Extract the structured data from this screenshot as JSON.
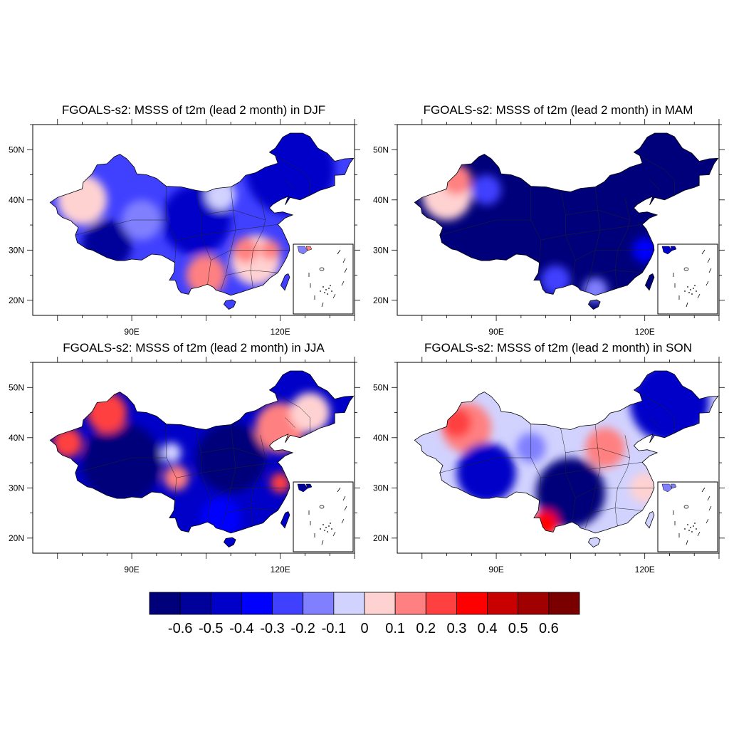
{
  "palette": [
    "#00007a",
    "#00009a",
    "#0000c8",
    "#0000ff",
    "#4040ff",
    "#8080ff",
    "#d2d2ff",
    "#ffd2d2",
    "#ff8080",
    "#ff4040",
    "#ff0000",
    "#c80000",
    "#a00000",
    "#7a0000"
  ],
  "colorbar": {
    "labels": [
      "-0.6",
      "-0.5",
      "-0.4",
      "-0.3",
      "-0.2",
      "-0.1",
      "0",
      "0.1",
      "0.2",
      "0.3",
      "0.4",
      "0.5",
      "0.6"
    ]
  },
  "axes": {
    "lon_labels": [
      "90E",
      "120E"
    ],
    "lat_labels": [
      "50N",
      "40N",
      "30N",
      "20N"
    ]
  },
  "panels": [
    {
      "id": "djf",
      "title": "FGOALS-s2: MSSS of t2m (lead 2 month) in DJF",
      "base_color": "#4040ff",
      "blobs": [
        {
          "lon": 122,
          "lat": 46,
          "r": 9,
          "c": "#0000c8"
        },
        {
          "lon": 85,
          "lat": 31,
          "r": 5,
          "c": "#00009a"
        },
        {
          "lon": 103,
          "lat": 36,
          "r": 7,
          "c": "#0000c8"
        },
        {
          "lon": 80,
          "lat": 40,
          "r": 5,
          "c": "#ffd2d2"
        },
        {
          "lon": 115,
          "lat": 28,
          "r": 5,
          "c": "#ffd2d2"
        },
        {
          "lon": 113,
          "lat": 30,
          "r": 2.5,
          "c": "#ff8080"
        },
        {
          "lon": 118,
          "lat": 30,
          "r": 2,
          "c": "#ff8080"
        },
        {
          "lon": 105,
          "lat": 25,
          "r": 4,
          "c": "#ff8080"
        },
        {
          "lon": 92,
          "lat": 36,
          "r": 4,
          "c": "#8080ff"
        },
        {
          "lon": 108,
          "lat": 41,
          "r": 3,
          "c": "#d2d2ff"
        }
      ]
    },
    {
      "id": "mam",
      "title": "FGOALS-s2: MSSS of t2m (lead 2 month) in MAM",
      "base_color": "#00007a",
      "blobs": [
        {
          "lon": 80,
          "lat": 41,
          "r": 5,
          "c": "#ffd2d2"
        },
        {
          "lon": 82,
          "lat": 44,
          "r": 3,
          "c": "#ff8080"
        },
        {
          "lon": 88,
          "lat": 42,
          "r": 3,
          "c": "#4040ff"
        },
        {
          "lon": 102,
          "lat": 24,
          "r": 3,
          "c": "#4040ff"
        },
        {
          "lon": 110,
          "lat": 22,
          "r": 2.5,
          "c": "#8080ff"
        },
        {
          "lon": 120,
          "lat": 30,
          "r": 2.5,
          "c": "#0000ff"
        }
      ]
    },
    {
      "id": "jja",
      "title": "FGOALS-s2: MSSS of t2m (lead 2 month) in JJA",
      "base_color": "#0000c8",
      "blobs": [
        {
          "lon": 88,
          "lat": 35,
          "r": 8,
          "c": "#00007a"
        },
        {
          "lon": 110,
          "lat": 36,
          "r": 7,
          "c": "#00007a"
        },
        {
          "lon": 85,
          "lat": 45,
          "r": 4,
          "c": "#ff4040"
        },
        {
          "lon": 77,
          "lat": 39,
          "r": 3,
          "c": "#ff4040"
        },
        {
          "lon": 120,
          "lat": 42,
          "r": 5,
          "c": "#ff8080"
        },
        {
          "lon": 126,
          "lat": 45,
          "r": 4,
          "c": "#ffd2d2"
        },
        {
          "lon": 99,
          "lat": 32,
          "r": 2.5,
          "c": "#ff8080"
        },
        {
          "lon": 120,
          "lat": 31,
          "r": 2,
          "c": "#ff4040"
        },
        {
          "lon": 98,
          "lat": 37,
          "r": 2,
          "c": "#d2d2ff"
        },
        {
          "lon": 108,
          "lat": 24,
          "r": 4,
          "c": "#0000ff"
        }
      ]
    },
    {
      "id": "son",
      "title": "FGOALS-s2: MSSS of t2m (lead 2 month) in SON",
      "base_color": "#d2d2ff",
      "blobs": [
        {
          "lon": 125,
          "lat": 47,
          "r": 8,
          "c": "#0000c8"
        },
        {
          "lon": 84,
          "lat": 42,
          "r": 5,
          "c": "#ff8080"
        },
        {
          "lon": 82,
          "lat": 43,
          "r": 3,
          "c": "#ff4040"
        },
        {
          "lon": 88,
          "lat": 33,
          "r": 6,
          "c": "#0000c8"
        },
        {
          "lon": 105,
          "lat": 29,
          "r": 7,
          "c": "#00007a"
        },
        {
          "lon": 112,
          "lat": 38,
          "r": 4,
          "c": "#ff8080"
        },
        {
          "lon": 100,
          "lat": 23,
          "r": 2.5,
          "c": "#ff0000"
        },
        {
          "lon": 120,
          "lat": 30,
          "r": 3,
          "c": "#ffd2d2"
        },
        {
          "lon": 97,
          "lat": 38,
          "r": 3,
          "c": "#8080ff"
        }
      ]
    }
  ]
}
